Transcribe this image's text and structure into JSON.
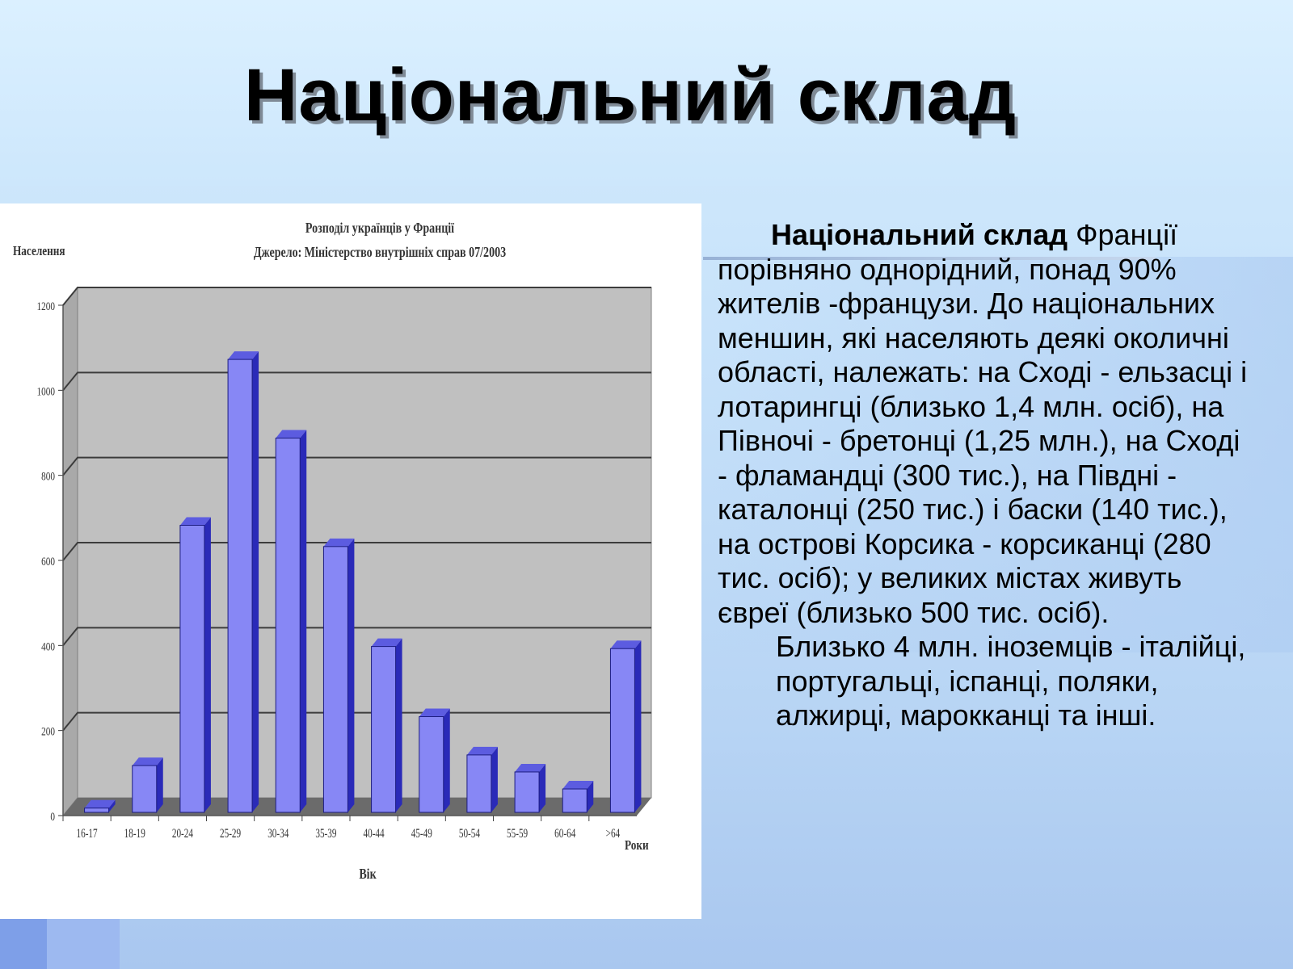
{
  "slide": {
    "title": "Національний склад",
    "text": {
      "lead_bold": "Національний склад",
      "paragraph1": "Франції порівняно однорідний, понад 90% жителів -французи. До національних меншин, які населяють деякі околичні області, належать: на Сході - ельзасці і лотарингці (близько 1,4 млн. осіб), на Півночі - бретонці (1,25 млн.), на Сході - фламандці (300 тис.), на Півдні - каталонці (250 тис.) і баски (140 тис.), на острові Корсика - корсиканці (280 тис. осіб); у великих містах живуть євреї (близько 500 тис. осіб).",
      "paragraph2": "Близько 4 млн. іноземців - італійці, португальці, іспанці, поляки, алжирці, марокканці та інші."
    }
  },
  "colors": {
    "bar": "#8787f5",
    "bar_side": "#2a2ab8",
    "bar_top": "#5c5ce0",
    "plot_bg": "#c0c0c0",
    "floor": "#6b6b6b"
  },
  "chart_data": {
    "type": "bar",
    "title": "Розподіл українців у Франції",
    "subtitle": "Джерело: Міністерство внутрішніх справ 07/2003",
    "ylabel": "Населення",
    "xlabel": "Вік",
    "x_unit_label": "Роки",
    "categories": [
      "16-17",
      "18-19",
      "20-24",
      "25-29",
      "30-34",
      "35-39",
      "40-44",
      "45-49",
      "50-54",
      "55-59",
      "60-64",
      ">64"
    ],
    "values": [
      10,
      110,
      675,
      1065,
      880,
      625,
      390,
      225,
      135,
      95,
      55,
      385
    ],
    "ylim": [
      0,
      1200
    ],
    "yticks": [
      0,
      200,
      400,
      600,
      800,
      1000,
      1200
    ],
    "grid": true,
    "legend": "none",
    "style": "3d"
  }
}
